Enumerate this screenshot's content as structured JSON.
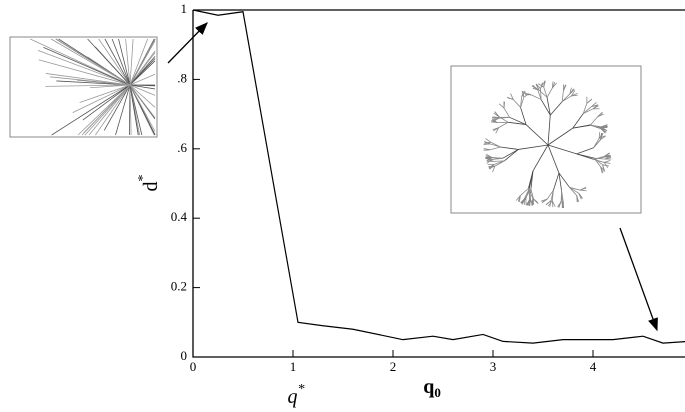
{
  "chart_data": {
    "type": "line",
    "x": [
      0,
      0.25,
      0.5,
      1.05,
      1.3,
      1.6,
      2.1,
      2.4,
      2.6,
      2.9,
      3.1,
      3.4,
      3.7,
      4.2,
      4.5,
      4.7,
      4.95
    ],
    "series": [
      {
        "color": "#000000",
        "values": [
          1,
          0.985,
          0.995,
          0.1,
          0.09,
          0.08,
          0.05,
          0.06,
          0.05,
          0.065,
          0.045,
          0.04,
          0.05,
          0.05,
          0.06,
          0.04,
          0.045
        ]
      }
    ],
    "xlim": [
      0,
      4.95
    ],
    "ylim": [
      0,
      1
    ],
    "xticks": [
      0,
      1,
      2,
      3,
      4
    ],
    "yticks": [
      0,
      0.2,
      0.4,
      {
        "value": 0.6,
        "label": ".6"
      },
      {
        "value": 0.8,
        "label": ".8"
      },
      1
    ],
    "ylabel": {
      "text": "d",
      "sup": "*"
    },
    "xlabel": {
      "text": "q",
      "sub": "0"
    },
    "annotation": {
      "text": "q",
      "sup": "*"
    }
  }
}
